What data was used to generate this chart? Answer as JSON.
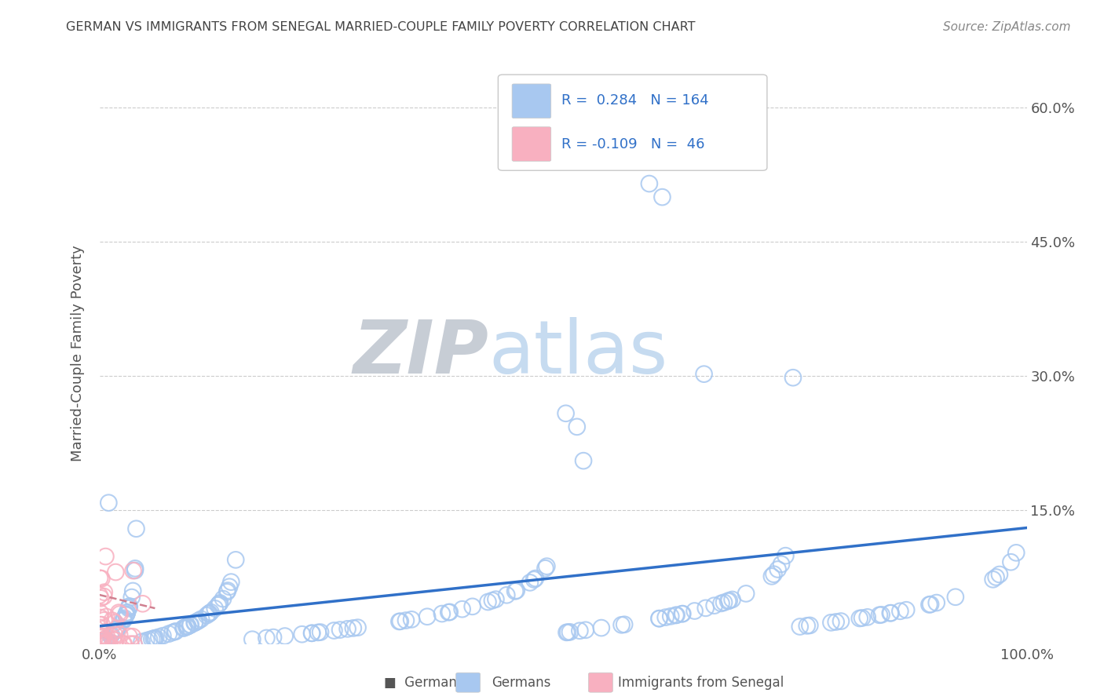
{
  "title": "GERMAN VS IMMIGRANTS FROM SENEGAL MARRIED-COUPLE FAMILY POVERTY CORRELATION CHART",
  "source": "Source: ZipAtlas.com",
  "ylabel": "Married-Couple Family Poverty",
  "xlim": [
    0,
    1.0
  ],
  "ylim": [
    0,
    0.65
  ],
  "xticks": [
    0.0,
    1.0
  ],
  "xticklabels": [
    "0.0%",
    "100.0%"
  ],
  "yticks": [
    0.15,
    0.3,
    0.45,
    0.6
  ],
  "yticklabels": [
    "15.0%",
    "30.0%",
    "45.0%",
    "60.0%"
  ],
  "german_R": 0.284,
  "german_N": 164,
  "senegal_R": -0.109,
  "senegal_N": 46,
  "german_color": "#A8C8F0",
  "senegal_color": "#F8B0C0",
  "german_line_color": "#3070C8",
  "senegal_line_color": "#D08090",
  "watermark_ZIP": "ZIP",
  "watermark_atlas": "atlas",
  "background_color": "#ffffff",
  "grid_color": "#cccccc",
  "title_color": "#444444",
  "axis_label_color": "#555555",
  "tick_label_color": "#555555",
  "source_color": "#888888",
  "legend_text_color": "#3070C8",
  "legend_R_color": "#3070C8",
  "legend_N_color": "#3070C8"
}
